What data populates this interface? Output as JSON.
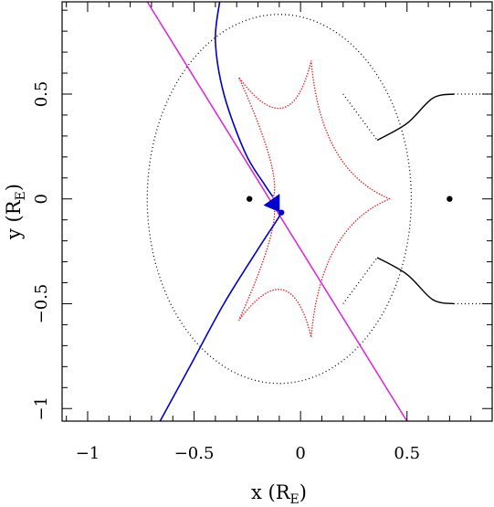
{
  "chart_data": {
    "type": "line",
    "xlabel": {
      "main": "x (R",
      "sub": "E",
      "close": ")"
    },
    "ylabel": {
      "main": "y (R",
      "sub": "E",
      "close": ")"
    },
    "xlim": [
      -1.12,
      0.9
    ],
    "ylim": [
      -1.06,
      0.94
    ],
    "x_ticks": [
      -1,
      -0.5,
      0,
      0.5
    ],
    "x_tick_labels": [
      "−1",
      "−0.5",
      "0",
      "0.5"
    ],
    "y_ticks": [
      -1,
      -0.5,
      0,
      0.5
    ],
    "y_tick_labels": [
      "−1",
      "−0.5",
      "0",
      "0.5"
    ],
    "grid": false,
    "colors": {
      "critical": "#000000",
      "caustic": "#dd2222",
      "trajectory": "#dd22dd",
      "images": "#0000cc",
      "masses": "#000000"
    },
    "masses": [
      {
        "x": -0.24,
        "y": 0.0
      },
      {
        "x": 0.7,
        "y": 0.0
      }
    ],
    "source_position": {
      "x": -0.09,
      "y": -0.065
    },
    "trajectory": [
      [
        -0.72,
        0.94
      ],
      [
        0.5,
        -1.06
      ]
    ],
    "caustic_cusps": [
      [
        0.42,
        0.0
      ],
      [
        0.05,
        0.66
      ],
      [
        -0.29,
        0.58
      ],
      [
        -0.13,
        0.0
      ],
      [
        -0.29,
        -0.58
      ],
      [
        0.05,
        -0.66
      ]
    ],
    "critical_curve_inner": {
      "center": [
        -0.1,
        0.0
      ],
      "rx": 0.62,
      "ry": 0.88
    },
    "critical_curve_outer_upper": [
      [
        0.2,
        0.5
      ],
      [
        0.36,
        0.28
      ],
      [
        0.5,
        0.36
      ],
      [
        0.62,
        0.48
      ],
      [
        0.72,
        0.5
      ],
      [
        0.9,
        0.5
      ]
    ],
    "critical_curve_outer_lower": [
      [
        0.2,
        -0.5
      ],
      [
        0.36,
        -0.28
      ],
      [
        0.5,
        -0.36
      ],
      [
        0.62,
        -0.48
      ],
      [
        0.72,
        -0.5
      ],
      [
        0.9,
        -0.5
      ]
    ],
    "image_track_upper": [
      [
        -0.38,
        0.94
      ],
      [
        -0.4,
        0.75
      ],
      [
        -0.36,
        0.5
      ],
      [
        -0.26,
        0.22
      ],
      [
        -0.17,
        0.07
      ],
      [
        -0.13,
        0.01
      ]
    ],
    "image_track_lower": [
      [
        -0.66,
        -1.06
      ],
      [
        -0.52,
        -0.8
      ],
      [
        -0.36,
        -0.5
      ],
      [
        -0.2,
        -0.24
      ],
      [
        -0.11,
        -0.1
      ],
      [
        -0.09,
        -0.065
      ]
    ]
  }
}
